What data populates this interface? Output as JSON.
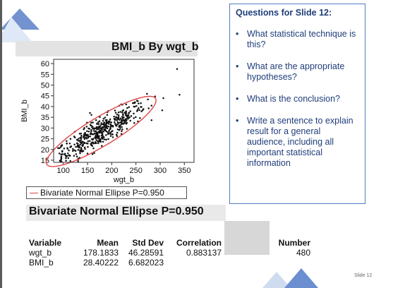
{
  "slide": {
    "number_label": "Slide 12"
  },
  "chart_data": {
    "type": "scatter",
    "title": "BMI_b By wgt_b",
    "xlabel": "wgt_b",
    "ylabel": "BMI_b",
    "xlim": [
      80,
      370
    ],
    "ylim": [
      14,
      62
    ],
    "xticks": [
      100,
      150,
      200,
      250,
      300,
      350
    ],
    "yticks": [
      15,
      20,
      25,
      30,
      35,
      40,
      45,
      50,
      55,
      60
    ],
    "grid": false,
    "ellipse": {
      "label": "Bivariate Normal Ellipse P=0.950",
      "color": "#e04444",
      "mean_x": 178.1833,
      "mean_y": 28.40222,
      "sd_x": 46.28591,
      "sd_y": 6.682023,
      "r": 0.883137
    },
    "point_color": "#111111",
    "n_points": 480
  },
  "stats": {
    "section_title": "Bivariate Normal Ellipse P=0.950",
    "headers": {
      "variable": "Variable",
      "mean": "Mean",
      "stddev": "Std Dev",
      "correlation": "Correlation",
      "number": "Number"
    },
    "rows": [
      {
        "variable": "wgt_b",
        "mean": "178.1833",
        "stddev": "46.28591",
        "correlation": "0.883137",
        "number": "480"
      },
      {
        "variable": "BMI_b",
        "mean": "28.40222",
        "stddev": "6.682023",
        "correlation": "",
        "number": ""
      }
    ]
  },
  "questions": {
    "title": "Questions for Slide 12:",
    "items": [
      "What statistical technique is this?",
      "What are the appropriate hypotheses?",
      "What is the conclusion?",
      "Write a sentence to explain result for a general audience, including all important statistical information"
    ]
  }
}
